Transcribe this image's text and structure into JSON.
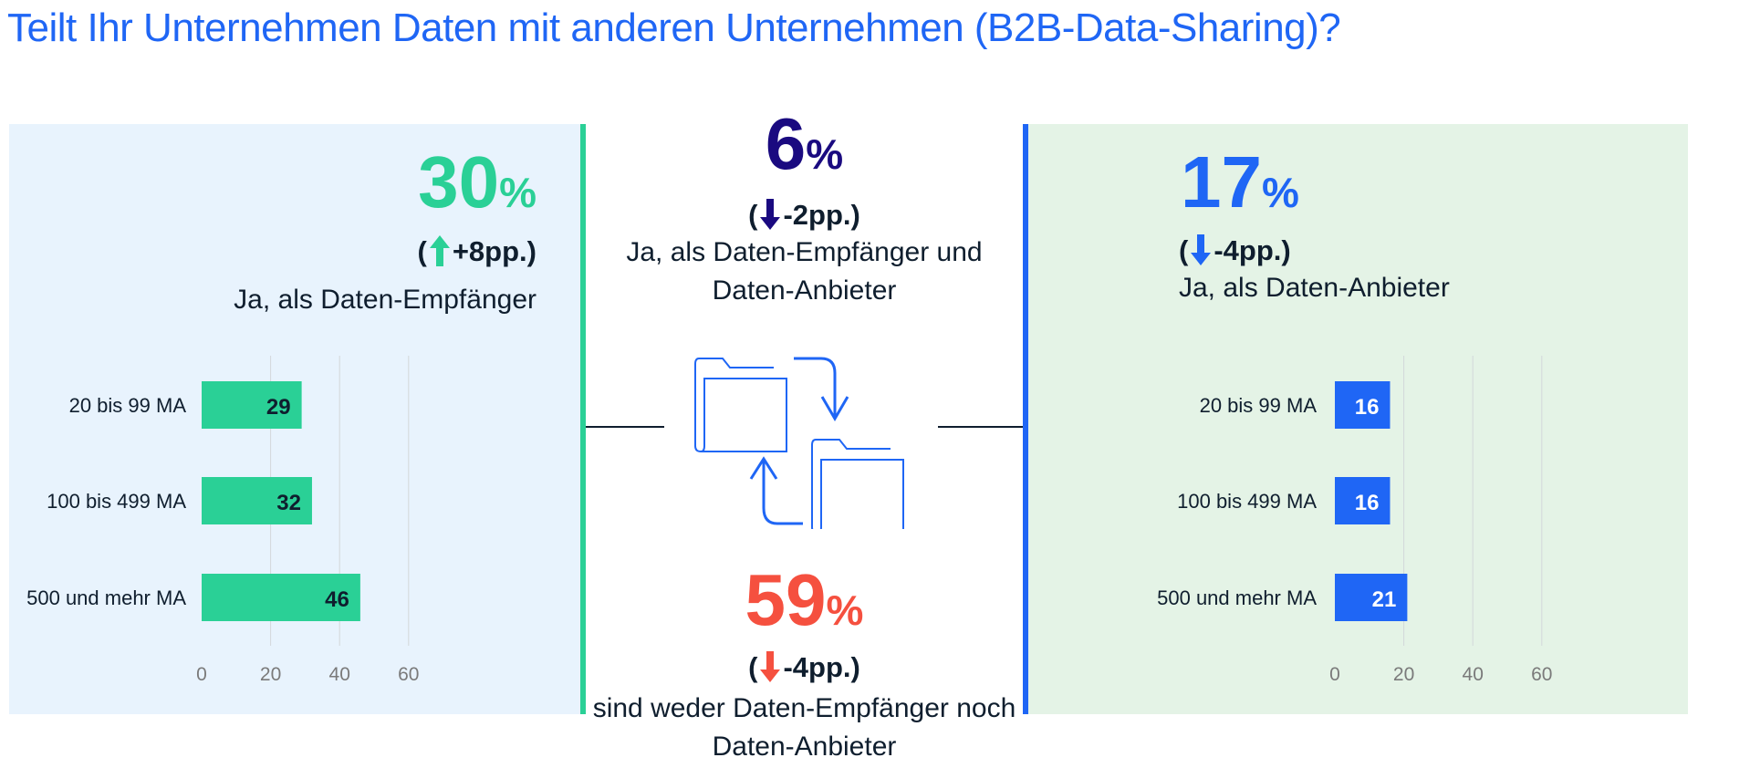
{
  "title": "Teilt Ihr Unternehmen Daten mit anderen Unternehmen (B2B-Data-Sharing)?",
  "colors": {
    "green": "#2ad096",
    "blue": "#1f66f5",
    "navy": "#1a0a80",
    "red": "#f5503f",
    "text": "#0f1e2e",
    "axis": "#7a7a7a"
  },
  "left": {
    "value": "30",
    "pct": "%",
    "delta": "+8pp.",
    "delta_dir": "up",
    "description": "Ja, als Daten-Empfänger"
  },
  "center_top": {
    "value": "6",
    "pct": "%",
    "delta": "-2pp.",
    "delta_dir": "down",
    "description_line1": "Ja, als Daten-Empfänger und",
    "description_line2": "Daten-Anbieter"
  },
  "center_bottom": {
    "value": "59",
    "pct": "%",
    "delta": "-4pp.",
    "delta_dir": "down",
    "description_line1": "sind weder Daten-Empfänger noch",
    "description_line2": "Daten-Anbieter"
  },
  "right": {
    "value": "17",
    "pct": "%",
    "delta": "-4pp.",
    "delta_dir": "down",
    "description": "Ja, als Daten-Anbieter"
  },
  "chart_data": [
    {
      "type": "bar",
      "orientation": "horizontal",
      "title": "Ja, als Daten-Empfänger",
      "categories": [
        "20 bis 99 MA",
        "100 bis 499 MA",
        "500 und mehr MA"
      ],
      "values": [
        29,
        32,
        46
      ],
      "xticks": [
        0,
        20,
        40,
        60
      ],
      "xlim": [
        0,
        60
      ],
      "grid": true,
      "color": "#2ad096",
      "label_color": "#0f1e2e"
    },
    {
      "type": "bar",
      "orientation": "horizontal",
      "title": "Ja, als Daten-Anbieter",
      "categories": [
        "20 bis 99 MA",
        "100 bis 499 MA",
        "500 und mehr MA"
      ],
      "values": [
        16,
        16,
        21
      ],
      "xticks": [
        0,
        20,
        40,
        60
      ],
      "xlim": [
        0,
        60
      ],
      "grid": true,
      "color": "#1f66f5",
      "label_color": "#ffffff"
    }
  ]
}
